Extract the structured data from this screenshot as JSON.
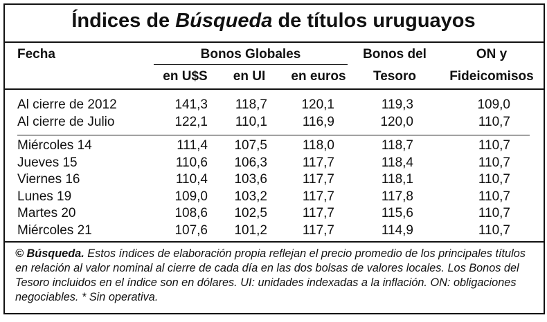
{
  "title": {
    "parts": [
      "Índices de ",
      "Búsqueda",
      " de títulos uruguayos"
    ]
  },
  "header": {
    "fecha": "Fecha",
    "bonos_globales": "Bonos Globales",
    "subcolumns": [
      "en U$S",
      "en UI",
      "en euros"
    ],
    "tesoro": [
      "Bonos del",
      "Tesoro"
    ],
    "on": [
      "ON y",
      "Fideicomisos"
    ]
  },
  "table": {
    "groups": [
      [
        [
          "Al cierre de 2012",
          "141,3",
          "118,7",
          "120,1",
          "119,3",
          "109,0"
        ],
        [
          "Al cierre de Julio",
          "122,1",
          "110,1",
          "116,9",
          "120,0",
          "110,7"
        ]
      ],
      [
        [
          "Miércoles 14",
          "111,4",
          "107,5",
          "118,0",
          "118,7",
          "110,7"
        ],
        [
          "Jueves 15",
          "110,6",
          "106,3",
          "117,7",
          "118,4",
          "110,7"
        ],
        [
          "Viernes 16",
          "110,4",
          "103,6",
          "117,7",
          "118,1",
          "110,7"
        ],
        [
          "Lunes 19",
          "109,0",
          "103,2",
          "117,7",
          "117,8",
          "110,7"
        ],
        [
          "Martes 20",
          "108,6",
          "102,5",
          "117,7",
          "115,6",
          "110,7"
        ],
        [
          "Miércoles 21",
          "107,6",
          "101,2",
          "117,7",
          "114,9",
          "110,7"
        ]
      ]
    ]
  },
  "footnote": {
    "parts": [
      "© ",
      "Búsqueda.",
      " Estos índices de elaboración propia reflejan el precio promedio de los principales títulos en relación al valor nominal al cierre de cada día en las dos bolsas de valores locales. Los Bonos del Tesoro incluidos en el índice son en dólares. UI: unidades indexadas a la inflación. ON: obligaciones negociables. * Sin operativa."
    ]
  }
}
